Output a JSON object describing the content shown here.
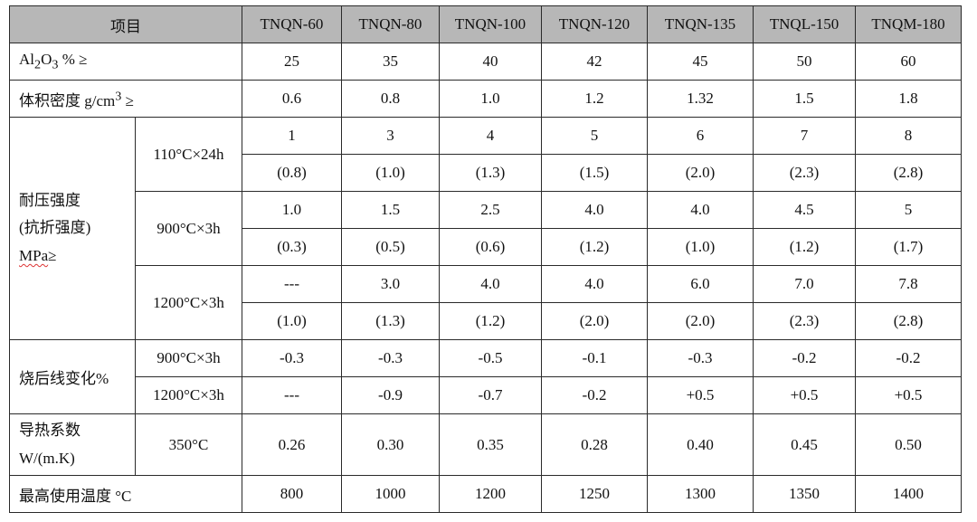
{
  "header": {
    "item": "项目",
    "products": [
      "TNQN-60",
      "TNQN-80",
      "TNQN-100",
      "TNQN-120",
      "TNQN-135",
      "TNQL-150",
      "TNQM-180"
    ]
  },
  "al2o3": {
    "pre": "Al",
    "sub1": "2",
    "mid": "O",
    "sub2": "3",
    "post": " % ≥",
    "values": [
      "25",
      "35",
      "40",
      "42",
      "45",
      "50",
      "60"
    ]
  },
  "density": {
    "pre": "体积密度  g/cm",
    "sup": "3",
    "post": " ≥",
    "values": [
      "0.6",
      "0.8",
      "1.0",
      "1.2",
      "1.32",
      "1.5",
      "1.8"
    ]
  },
  "strength": {
    "label_line1": "耐压强度",
    "label_line2": "(抗折强度)",
    "label_unit": "MPa",
    "label_ge": "≥",
    "conditions": [
      {
        "name": "110°C×24h",
        "compressive": [
          "1",
          "3",
          "4",
          "5",
          "6",
          "7",
          "8"
        ],
        "flexural": [
          "(0.8)",
          "(1.0)",
          "(1.3)",
          "(1.5)",
          "(2.0)",
          "(2.3)",
          "(2.8)"
        ]
      },
      {
        "name": "900°C×3h",
        "compressive": [
          "1.0",
          "1.5",
          "2.5",
          "4.0",
          "4.0",
          "4.5",
          "5"
        ],
        "flexural": [
          "(0.3)",
          "(0.5)",
          "(0.6)",
          "(1.2)",
          "(1.0)",
          "(1.2)",
          "(1.7)"
        ]
      },
      {
        "name": "1200°C×3h",
        "compressive": [
          "---",
          "3.0",
          "4.0",
          "4.0",
          "6.0",
          "7.0",
          "7.8"
        ],
        "flexural": [
          "(1.0)",
          "(1.3)",
          "(1.2)",
          "(2.0)",
          "(2.0)",
          "(2.3)",
          "(2.8)"
        ]
      }
    ]
  },
  "linear_change": {
    "label": "烧后线变化%",
    "rows": [
      {
        "name": "900°C×3h",
        "values": [
          "-0.3",
          "-0.3",
          "-0.5",
          "-0.1",
          "-0.3",
          "-0.2",
          "-0.2"
        ]
      },
      {
        "name": "1200°C×3h",
        "values": [
          "---",
          "-0.9",
          "-0.7",
          "-0.2",
          "+0.5",
          "+0.5",
          "+0.5"
        ]
      }
    ]
  },
  "conductivity": {
    "label_line1": "导热系数",
    "label_line2": "W/(m.K)",
    "condition": "350°C",
    "values": [
      "0.26",
      "0.30",
      "0.35",
      "0.28",
      "0.40",
      "0.45",
      "0.50"
    ]
  },
  "max_temp": {
    "label": "最高使用温度  °C",
    "values": [
      "800",
      "1000",
      "1200",
      "1250",
      "1300",
      "1350",
      "1400"
    ]
  }
}
